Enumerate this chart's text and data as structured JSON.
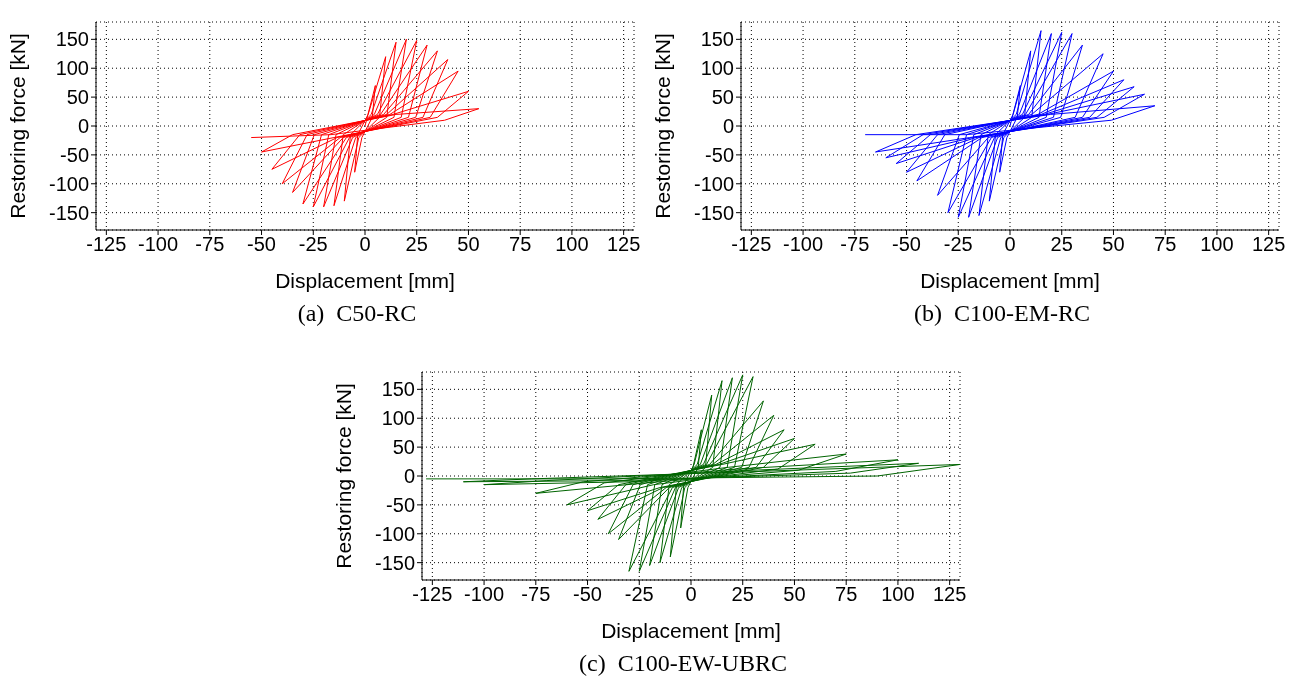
{
  "chart_data": [
    {
      "type": "line",
      "title": "(a)  C50-RC",
      "xlabel": "Displacement [mm]",
      "ylabel": "Restoring force [kN]",
      "xlim": [
        -130,
        130
      ],
      "ylim": [
        -180,
        180
      ],
      "xticks": [
        -125,
        -100,
        -75,
        -50,
        -25,
        0,
        25,
        50,
        75,
        100,
        125
      ],
      "yticks": [
        -150,
        -100,
        -50,
        0,
        50,
        100,
        150
      ],
      "grid": true,
      "marker": "none",
      "series": [
        {
          "color": "#ff0000",
          "x": [
            0,
            5,
            3.5,
            -1.5,
            -5,
            -3.5,
            1.5,
            10,
            7,
            -3,
            -10,
            -7,
            3,
            15,
            10.5,
            -4.5,
            -15,
            -10.5,
            4.5,
            20,
            14,
            -6,
            -20,
            -14,
            6,
            25,
            17.5,
            -7.5,
            -25,
            -17.5,
            7.5,
            30,
            21,
            -9,
            -30,
            -21,
            9,
            35,
            24.5,
            -10.5,
            -35,
            -24.5,
            10.5,
            40,
            28,
            -12,
            -40,
            -28,
            12,
            45,
            31.5,
            -13.5,
            -45,
            -31.5,
            13.5,
            50,
            35,
            -15,
            -50,
            -35,
            15,
            55,
            38.5,
            -16.5,
            -55
          ],
          "values": [
            0,
            70,
            15,
            -20,
            -80,
            -15,
            20,
            120,
            15,
            -20,
            -130,
            -15,
            20,
            145,
            15,
            -20,
            -138,
            -15,
            20,
            150,
            15,
            -20,
            -140,
            -15,
            20,
            148,
            15,
            -20,
            -140,
            -15,
            20,
            140,
            15,
            -20,
            -135,
            -15,
            20,
            130,
            15,
            -20,
            -115,
            -15,
            20,
            115,
            15,
            -20,
            -100,
            -15,
            20,
            95,
            15,
            -20,
            -75,
            -15,
            20,
            60,
            15,
            -20,
            -45,
            -15,
            20,
            30,
            10,
            -15,
            -20
          ]
        }
      ]
    },
    {
      "type": "line",
      "title": "(b)  C100-EM-RC",
      "xlabel": "Displacement [mm]",
      "ylabel": "Restoring force [kN]",
      "xlim": [
        -130,
        130
      ],
      "ylim": [
        -180,
        180
      ],
      "xticks": [
        -125,
        -100,
        -75,
        -50,
        -25,
        0,
        25,
        50,
        75,
        100,
        125
      ],
      "yticks": [
        -150,
        -100,
        -50,
        0,
        50,
        100,
        150
      ],
      "grid": true,
      "marker": "none",
      "series": [
        {
          "color": "#0000ff",
          "x": [
            0,
            5,
            3.5,
            -1.5,
            -5,
            -3.5,
            1.5,
            10,
            7,
            -3,
            -10,
            -7,
            3,
            15,
            10.5,
            -4.5,
            -15,
            -10.5,
            4.5,
            20,
            14,
            -6,
            -20,
            -14,
            6,
            25,
            17.5,
            -7.5,
            -25,
            -17.5,
            7.5,
            30,
            21,
            -9,
            -30,
            -21,
            9,
            35,
            24.5,
            -10.5,
            -35,
            -24.5,
            10.5,
            45,
            31.5,
            -13.5,
            -45,
            -31.5,
            13.5,
            50,
            35,
            -15,
            -50,
            -35,
            15,
            55,
            38.5,
            -16.5,
            -55,
            -38.5,
            16.5,
            60,
            42,
            -18,
            -60,
            -42,
            18,
            65,
            45.5,
            -19.5,
            -65,
            -45.5,
            19.5,
            70,
            49,
            -21,
            -70
          ],
          "values": [
            0,
            70,
            15,
            -20,
            -80,
            -15,
            20,
            130,
            15,
            -20,
            -130,
            -15,
            20,
            165,
            15,
            -20,
            -155,
            -15,
            20,
            160,
            15,
            -20,
            -158,
            -15,
            20,
            162,
            15,
            -20,
            -158,
            -15,
            20,
            160,
            15,
            -20,
            -150,
            -15,
            20,
            140,
            15,
            -20,
            -120,
            -15,
            20,
            125,
            15,
            -20,
            -95,
            -15,
            20,
            95,
            15,
            -20,
            -80,
            -15,
            20,
            80,
            15,
            -20,
            -65,
            -15,
            20,
            68,
            15,
            -20,
            -55,
            -15,
            20,
            55,
            15,
            -20,
            -45,
            -15,
            20,
            35,
            10,
            -15,
            -15
          ]
        }
      ]
    },
    {
      "type": "line",
      "title": "(c)  C100-EW-UBRC",
      "xlabel": "Displacement [mm]",
      "ylabel": "Restoring force [kN]",
      "xlim": [
        -130,
        130
      ],
      "ylim": [
        -180,
        180
      ],
      "xticks": [
        -125,
        -100,
        -75,
        -50,
        -25,
        0,
        25,
        50,
        75,
        100,
        125
      ],
      "yticks": [
        -150,
        -100,
        -50,
        0,
        50,
        100,
        150
      ],
      "grid": true,
      "marker": "none",
      "series": [
        {
          "color": "#006400",
          "x": [
            0,
            5,
            3.5,
            -1.5,
            -5,
            -3.5,
            1.5,
            10,
            7,
            -3,
            -10,
            -7,
            3,
            15,
            10.5,
            -4.5,
            -15,
            -10.5,
            4.5,
            20,
            14,
            -6,
            -20,
            -14,
            6,
            25,
            17.5,
            -7.5,
            -25,
            -17.5,
            7.5,
            30,
            21,
            -9,
            -30,
            -21,
            9,
            35,
            24.5,
            -10.5,
            -35,
            -24.5,
            10.5,
            40,
            28,
            -12,
            -40,
            -28,
            12,
            45,
            31.5,
            -13.5,
            -45,
            -31.5,
            13.5,
            50,
            35,
            -15,
            -50,
            -35,
            15,
            60,
            42,
            -18,
            -60,
            -42,
            18,
            75,
            52,
            -22,
            -75,
            -52,
            22,
            100,
            70,
            -30,
            -100,
            -70,
            30,
            110,
            77,
            -33,
            -110,
            -77,
            33,
            130,
            90,
            -40,
            -128
          ],
          "values": [
            0,
            80,
            15,
            -20,
            -90,
            -15,
            20,
            140,
            15,
            -20,
            -140,
            -15,
            20,
            165,
            15,
            -20,
            -150,
            -15,
            20,
            170,
            15,
            -20,
            -155,
            -15,
            20,
            175,
            15,
            -20,
            -165,
            -15,
            20,
            172,
            15,
            -20,
            -165,
            -15,
            20,
            130,
            15,
            -20,
            -110,
            -15,
            20,
            105,
            15,
            -20,
            -100,
            -15,
            20,
            80,
            15,
            -20,
            -75,
            -15,
            20,
            65,
            15,
            -20,
            -60,
            -15,
            20,
            55,
            12,
            -15,
            -50,
            -12,
            15,
            38,
            10,
            -12,
            -30,
            -10,
            12,
            28,
            8,
            -10,
            -15,
            -8,
            10,
            22,
            5,
            -8,
            -10,
            -5,
            8,
            20,
            0,
            -5,
            -5
          ]
        }
      ]
    }
  ]
}
